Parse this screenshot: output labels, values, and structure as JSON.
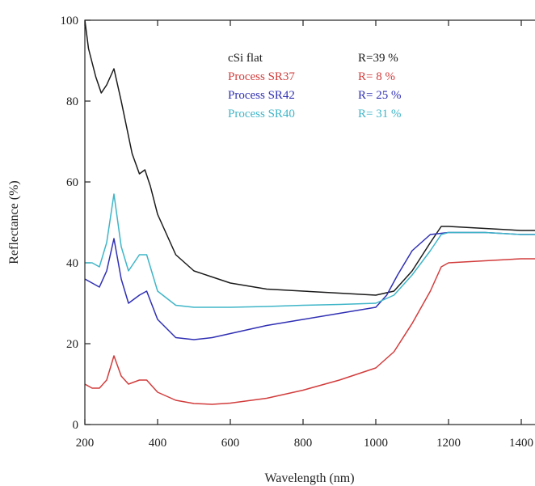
{
  "chart_data": {
    "type": "line",
    "title": "",
    "xlabel": "Wavelength (nm)",
    "ylabel": "Reflectance (%)",
    "xlim": [
      200,
      1500
    ],
    "ylim": [
      0,
      100
    ],
    "x_ticks": [
      "200",
      "400",
      "600",
      "800",
      "1000",
      "1200",
      "1400"
    ],
    "y_ticks": [
      "0",
      "20",
      "40",
      "60",
      "80",
      "100"
    ],
    "grid": false,
    "legend_position": "top-center",
    "series": [
      {
        "name": "cSi flat",
        "r_label": "R=39 %",
        "color": "#1a1a1a",
        "x": [
          200,
          210,
          230,
          245,
          260,
          280,
          300,
          330,
          350,
          365,
          380,
          400,
          450,
          500,
          600,
          700,
          800,
          900,
          1000,
          1050,
          1100,
          1150,
          1180,
          1200,
          1300,
          1400,
          1500
        ],
        "y": [
          100,
          93,
          86,
          82,
          84,
          88,
          80,
          67,
          62,
          63,
          59,
          52,
          42,
          38,
          35,
          33.5,
          33,
          32.5,
          32,
          33,
          38,
          45,
          49,
          49,
          48.5,
          48,
          48
        ]
      },
      {
        "name": "Process SR37",
        "r_label": "R= 8 %",
        "color": "#d23c3c",
        "x": [
          200,
          220,
          240,
          260,
          280,
          300,
          320,
          350,
          370,
          400,
          450,
          500,
          550,
          600,
          700,
          800,
          900,
          1000,
          1050,
          1100,
          1150,
          1180,
          1200,
          1300,
          1400,
          1500
        ],
        "y": [
          10,
          9,
          9,
          11,
          17,
          12,
          10,
          11,
          11,
          8,
          6,
          5.2,
          5,
          5.3,
          6.5,
          8.5,
          11,
          14,
          18,
          25,
          33,
          39,
          40,
          40.5,
          41,
          41
        ]
      },
      {
        "name": "Process SR42",
        "r_label": "R= 25 %",
        "color": "#2f2fb4",
        "x": [
          200,
          220,
          240,
          260,
          280,
          300,
          320,
          350,
          370,
          400,
          450,
          500,
          550,
          600,
          700,
          800,
          900,
          1000,
          1030,
          1060,
          1100,
          1150,
          1200,
          1300,
          1400,
          1500
        ],
        "y": [
          36,
          35,
          34,
          38,
          46,
          36,
          30,
          32,
          33,
          26,
          21.5,
          21,
          21.5,
          22.5,
          24.5,
          26,
          27.5,
          29,
          32,
          37,
          43,
          47,
          47.5,
          47.5,
          47,
          47
        ]
      },
      {
        "name": "Process SR40",
        "r_label": "R= 31 %",
        "color": "#3fb5c8",
        "x": [
          200,
          220,
          240,
          260,
          280,
          300,
          320,
          350,
          370,
          400,
          450,
          500,
          600,
          700,
          800,
          900,
          1000,
          1050,
          1100,
          1150,
          1180,
          1200,
          1300,
          1400,
          1500
        ],
        "y": [
          40,
          40,
          39,
          45,
          57,
          44,
          38,
          42,
          42,
          33,
          29.5,
          29,
          29,
          29.2,
          29.5,
          29.7,
          30,
          32,
          37,
          43,
          47,
          47.5,
          47.5,
          47,
          47
        ]
      }
    ]
  }
}
